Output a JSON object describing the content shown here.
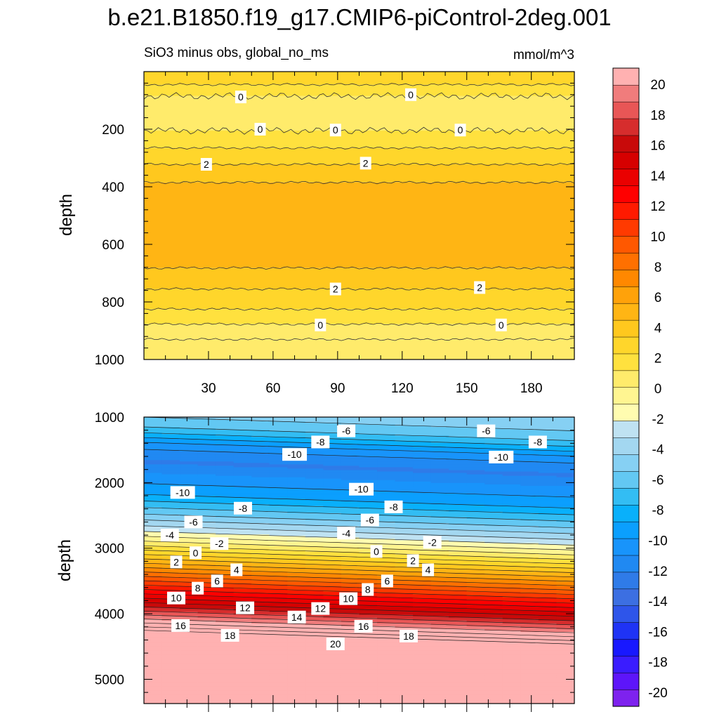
{
  "chart_data": {
    "type": "contour",
    "title": "b.e21.B1850.f19_g17.CMIP6-piControl-2deg.001",
    "subtitle_left": "SiO3 minus obs, global_no_ms",
    "units": "mmol/m^3",
    "x": {
      "range": [
        0,
        200
      ],
      "ticks": [
        30,
        60,
        90,
        120,
        150,
        180
      ]
    },
    "colorbar": {
      "levels": [
        -20,
        -19,
        -18,
        -17,
        -16,
        -15,
        -14,
        -13,
        -12,
        -11,
        -10,
        -9,
        -8,
        -7,
        -6,
        -5,
        -4,
        -3,
        -2,
        -1,
        0,
        1,
        2,
        3,
        4,
        5,
        6,
        7,
        8,
        9,
        10,
        11,
        12,
        13,
        14,
        15,
        16,
        17,
        18,
        19,
        20
      ],
      "tick_labels": [
        "20",
        "18",
        "16",
        "14",
        "12",
        "10",
        "8",
        "6",
        "4",
        "2",
        "0",
        "-2",
        "-4",
        "-6",
        "-8",
        "-10",
        "-12",
        "-14",
        "-16",
        "-18",
        "-20"
      ],
      "colors": [
        "#7e22ee",
        "#5d15fa",
        "#3a1cff",
        "#1818ff",
        "#1f33f5",
        "#2e55ea",
        "#3c6fe2",
        "#2f7be8",
        "#2089f2",
        "#1894fb",
        "#0b9ffe",
        "#09b0fb",
        "#33bdf3",
        "#63c8f3",
        "#86d0f3",
        "#a3d7f0",
        "#bfe2f2",
        "#fffcb0",
        "#fff591",
        "#ffeb6b",
        "#ffe13e",
        "#ffd62b",
        "#ffc81e",
        "#ffb514",
        "#ffa20a",
        "#ff8800",
        "#ff7000",
        "#ff5800",
        "#ff3a00",
        "#ff1a00",
        "#ff0000",
        "#ea0000",
        "#d60000",
        "#c80a0a",
        "#d62d2d",
        "#e85656",
        "#f07c7c",
        "#ffb1b1"
      ]
    },
    "panels": [
      {
        "ylabel": "depth",
        "ylim": [
          0,
          1000
        ],
        "yticks": [
          200,
          400,
          600,
          800,
          1000
        ],
        "bands": [
          {
            "from": 0,
            "to": 45,
            "value": 1.0
          },
          {
            "from": 45,
            "to": 85,
            "value": 0.3
          },
          {
            "from": 85,
            "to": 205,
            "value": -0.3
          },
          {
            "from": 205,
            "to": 265,
            "value": 0.4
          },
          {
            "from": 265,
            "to": 322,
            "value": 1.4
          },
          {
            "from": 322,
            "to": 385,
            "value": 2.4
          },
          {
            "from": 385,
            "to": 682,
            "value": 3.2
          },
          {
            "from": 682,
            "to": 755,
            "value": 2.4
          },
          {
            "from": 755,
            "to": 825,
            "value": 1.4
          },
          {
            "from": 825,
            "to": 877,
            "value": 0.4
          },
          {
            "from": 877,
            "to": 930,
            "value": -0.3
          },
          {
            "from": 930,
            "to": 1000,
            "value": -0.8
          }
        ],
        "contour_labels": [
          {
            "x": 45,
            "y": 88,
            "text": "0"
          },
          {
            "x": 124,
            "y": 80,
            "text": "0"
          },
          {
            "x": 54,
            "y": 200,
            "text": "0"
          },
          {
            "x": 89,
            "y": 203,
            "text": "0"
          },
          {
            "x": 147,
            "y": 203,
            "text": "0"
          },
          {
            "x": 29,
            "y": 322,
            "text": "2"
          },
          {
            "x": 103,
            "y": 318,
            "text": "2"
          },
          {
            "x": 89,
            "y": 755,
            "text": "2"
          },
          {
            "x": 156,
            "y": 750,
            "text": "2"
          },
          {
            "x": 82,
            "y": 880,
            "text": "0"
          },
          {
            "x": 166,
            "y": 880,
            "text": "0"
          }
        ]
      },
      {
        "ylabel": "depth",
        "ylim": [
          1000,
          5370
        ],
        "yticks": [
          1000,
          2000,
          3000,
          4000,
          5000
        ],
        "profile": [
          {
            "depth": 1000,
            "value": -5.2
          },
          {
            "depth": 1300,
            "value": -7.2
          },
          {
            "depth": 1550,
            "value": -10.6
          },
          {
            "depth": 1800,
            "value": -12.2
          },
          {
            "depth": 2000,
            "value": -10.8
          },
          {
            "depth": 2300,
            "value": -9.0
          },
          {
            "depth": 2600,
            "value": -6.0
          },
          {
            "depth": 2850,
            "value": -3.2
          },
          {
            "depth": 3050,
            "value": -0.5
          },
          {
            "depth": 3250,
            "value": 2.5
          },
          {
            "depth": 3450,
            "value": 5.5
          },
          {
            "depth": 3650,
            "value": 8.5
          },
          {
            "depth": 3850,
            "value": 11.5
          },
          {
            "depth": 4050,
            "value": 14.5
          },
          {
            "depth": 4200,
            "value": 17.0
          },
          {
            "depth": 4320,
            "value": 19.0
          },
          {
            "depth": 4400,
            "value": 20.5
          },
          {
            "depth": 5370,
            "value": 20.5
          }
        ],
        "tilt": {
          "x_left": 0,
          "x_right": 200,
          "shift_left": -120,
          "shift_right": 90
        },
        "contour_labels": [
          {
            "x": 94,
            "y": 1210,
            "text": "-6"
          },
          {
            "x": 159,
            "y": 1210,
            "text": "-6"
          },
          {
            "x": 82,
            "y": 1380,
            "text": "-8"
          },
          {
            "x": 183,
            "y": 1380,
            "text": "-8"
          },
          {
            "x": 70,
            "y": 1570,
            "text": "-10"
          },
          {
            "x": 166,
            "y": 1610,
            "text": "-10"
          },
          {
            "x": 18,
            "y": 2150,
            "text": "-10"
          },
          {
            "x": 101,
            "y": 2100,
            "text": "-10"
          },
          {
            "x": 46,
            "y": 2390,
            "text": "-8"
          },
          {
            "x": 116,
            "y": 2370,
            "text": "-8"
          },
          {
            "x": 23,
            "y": 2600,
            "text": "-6"
          },
          {
            "x": 105,
            "y": 2570,
            "text": "-6"
          },
          {
            "x": 12,
            "y": 2800,
            "text": "-4"
          },
          {
            "x": 94,
            "y": 2770,
            "text": "-4"
          },
          {
            "x": 35,
            "y": 2930,
            "text": "-2"
          },
          {
            "x": 134,
            "y": 2910,
            "text": "-2"
          },
          {
            "x": 24,
            "y": 3070,
            "text": "0"
          },
          {
            "x": 108,
            "y": 3050,
            "text": "0"
          },
          {
            "x": 15,
            "y": 3210,
            "text": "2"
          },
          {
            "x": 125,
            "y": 3190,
            "text": "2"
          },
          {
            "x": 43,
            "y": 3330,
            "text": "4"
          },
          {
            "x": 132,
            "y": 3330,
            "text": "4"
          },
          {
            "x": 34,
            "y": 3500,
            "text": "6"
          },
          {
            "x": 113,
            "y": 3500,
            "text": "6"
          },
          {
            "x": 25,
            "y": 3610,
            "text": "8"
          },
          {
            "x": 104,
            "y": 3630,
            "text": "8"
          },
          {
            "x": 15,
            "y": 3760,
            "text": "10"
          },
          {
            "x": 95,
            "y": 3770,
            "text": "10"
          },
          {
            "x": 47,
            "y": 3910,
            "text": "12"
          },
          {
            "x": 82,
            "y": 3920,
            "text": "12"
          },
          {
            "x": 71,
            "y": 4050,
            "text": "14"
          },
          {
            "x": 17,
            "y": 4180,
            "text": "16"
          },
          {
            "x": 102,
            "y": 4190,
            "text": "16"
          },
          {
            "x": 40,
            "y": 4330,
            "text": "18"
          },
          {
            "x": 123,
            "y": 4340,
            "text": "18"
          },
          {
            "x": 89,
            "y": 4460,
            "text": "20"
          }
        ]
      }
    ]
  }
}
